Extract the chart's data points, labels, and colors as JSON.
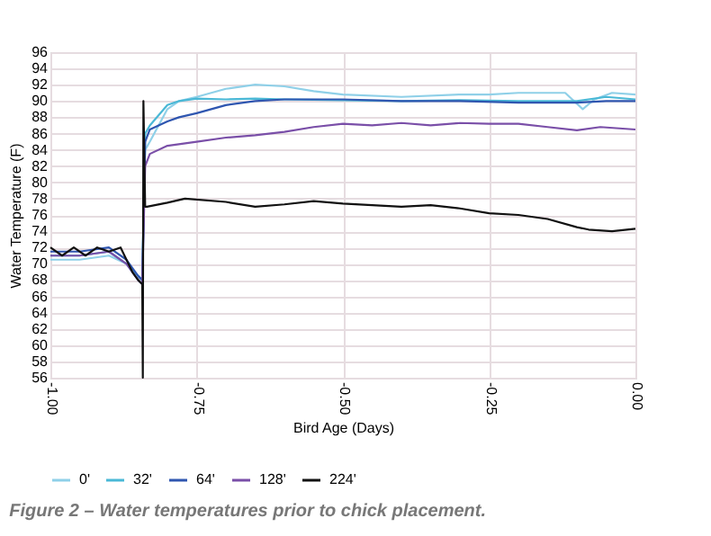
{
  "chart_data": {
    "type": "line",
    "xlabel": "Bird Age (Days)",
    "ylabel": "Water Temperature (F)",
    "annotations": [
      "Figure 2 – Water temperatures prior to chick placement."
    ],
    "xlim": [
      -1,
      0
    ],
    "xticks": [
      {
        "value": -1,
        "label": "-1.00"
      },
      {
        "value": -0.75,
        "label": "-0.75"
      },
      {
        "value": -0.5,
        "label": "-0.50"
      },
      {
        "value": -0.25,
        "label": "-0.25"
      },
      {
        "value": 0,
        "label": "0.00"
      }
    ],
    "ylim": [
      56,
      96
    ],
    "yticks": [
      56,
      58,
      60,
      62,
      64,
      66,
      68,
      70,
      72,
      74,
      76,
      78,
      80,
      82,
      84,
      86,
      88,
      90,
      92,
      94,
      96
    ],
    "grid": true,
    "legend": "bottom",
    "marker": "none",
    "line_style": "solid",
    "series": [
      {
        "name": "0'",
        "color": "#8fd0e8",
        "x": [
          -1,
          -0.95,
          -0.9,
          -0.87,
          -0.85,
          -0.843,
          -0.838,
          -0.83,
          -0.8,
          -0.78,
          -0.75,
          -0.7,
          -0.65,
          -0.6,
          -0.55,
          -0.5,
          -0.4,
          -0.3,
          -0.25,
          -0.2,
          -0.12,
          -0.09,
          -0.07,
          -0.04,
          0
        ],
        "values": [
          70.5,
          70.5,
          71,
          70,
          68,
          67.5,
          84,
          85,
          89,
          90,
          90.5,
          91.5,
          92,
          91.8,
          91.2,
          90.8,
          90.5,
          90.8,
          90.8,
          91,
          91,
          89,
          90.2,
          91,
          90.8
        ]
      },
      {
        "name": "32'",
        "color": "#4ab8d6",
        "x": [
          -1,
          -0.95,
          -0.9,
          -0.87,
          -0.85,
          -0.843,
          -0.838,
          -0.83,
          -0.8,
          -0.78,
          -0.75,
          -0.7,
          -0.65,
          -0.6,
          -0.5,
          -0.4,
          -0.3,
          -0.2,
          -0.1,
          -0.05,
          0
        ],
        "values": [
          71,
          71,
          71.5,
          70,
          68.5,
          68,
          86,
          87,
          89.5,
          90,
          90.3,
          90.2,
          90.3,
          90.2,
          90.1,
          90,
          90.1,
          90,
          90,
          90.5,
          90.2
        ]
      },
      {
        "name": "64'",
        "color": "#2f56b0",
        "x": [
          -1,
          -0.95,
          -0.9,
          -0.87,
          -0.85,
          -0.843,
          -0.838,
          -0.83,
          -0.8,
          -0.78,
          -0.75,
          -0.7,
          -0.65,
          -0.6,
          -0.5,
          -0.4,
          -0.3,
          -0.2,
          -0.1,
          -0.05,
          0
        ],
        "values": [
          71.5,
          71.5,
          72,
          70.5,
          68.5,
          68,
          85,
          86.5,
          87.5,
          88,
          88.5,
          89.5,
          90,
          90.2,
          90.2,
          90,
          90,
          89.8,
          89.8,
          90,
          90
        ]
      },
      {
        "name": "128'",
        "color": "#7a4fa8",
        "x": [
          -1,
          -0.95,
          -0.9,
          -0.87,
          -0.85,
          -0.843,
          -0.838,
          -0.83,
          -0.8,
          -0.75,
          -0.7,
          -0.65,
          -0.6,
          -0.55,
          -0.5,
          -0.45,
          -0.4,
          -0.35,
          -0.3,
          -0.25,
          -0.2,
          -0.15,
          -0.1,
          -0.06,
          0
        ],
        "values": [
          71,
          71,
          71.5,
          70,
          68,
          67.5,
          82,
          83.5,
          84.5,
          85,
          85.5,
          85.8,
          86.2,
          86.8,
          87.2,
          87,
          87.3,
          87,
          87.3,
          87.2,
          87.2,
          86.8,
          86.4,
          86.8,
          86.5
        ]
      },
      {
        "name": "224'",
        "color": "#111111",
        "x": [
          -1,
          -0.98,
          -0.96,
          -0.94,
          -0.92,
          -0.9,
          -0.88,
          -0.86,
          -0.85,
          -0.843,
          -0.842,
          -0.841,
          -0.838,
          -0.835,
          -0.8,
          -0.77,
          -0.7,
          -0.65,
          -0.6,
          -0.55,
          -0.5,
          -0.45,
          -0.4,
          -0.35,
          -0.3,
          -0.25,
          -0.2,
          -0.15,
          -0.1,
          -0.08,
          -0.04,
          0
        ],
        "values": [
          72,
          71,
          72,
          71,
          72,
          71.5,
          72,
          69,
          68,
          67.5,
          56,
          90,
          77,
          77,
          77.5,
          78,
          77.6,
          77,
          77.3,
          77.7,
          77.4,
          77.2,
          77,
          77.2,
          76.8,
          76.2,
          76,
          75.5,
          74.5,
          74.2,
          74,
          74.3
        ]
      }
    ]
  }
}
